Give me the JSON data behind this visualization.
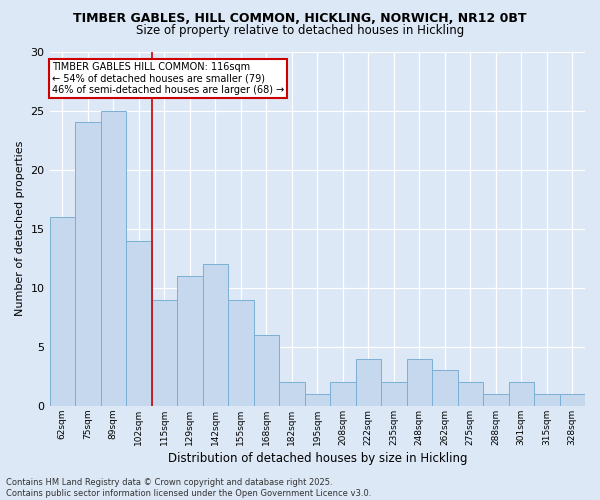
{
  "title_line1": "TIMBER GABLES, HILL COMMON, HICKLING, NORWICH, NR12 0BT",
  "title_line2": "Size of property relative to detached houses in Hickling",
  "xlabel": "Distribution of detached houses by size in Hickling",
  "ylabel": "Number of detached properties",
  "categories": [
    "62sqm",
    "75sqm",
    "89sqm",
    "102sqm",
    "115sqm",
    "129sqm",
    "142sqm",
    "155sqm",
    "168sqm",
    "182sqm",
    "195sqm",
    "208sqm",
    "222sqm",
    "235sqm",
    "248sqm",
    "262sqm",
    "275sqm",
    "288sqm",
    "301sqm",
    "315sqm",
    "328sqm"
  ],
  "values": [
    16,
    24,
    25,
    14,
    9,
    11,
    12,
    9,
    6,
    2,
    1,
    2,
    4,
    2,
    4,
    3,
    2,
    1,
    2,
    1,
    1
  ],
  "bar_color": "#c5d8ed",
  "bar_edge_color": "#7aafd4",
  "vline_color": "#cc0000",
  "annotation_text": "TIMBER GABLES HILL COMMON: 116sqm\n← 54% of detached houses are smaller (79)\n46% of semi-detached houses are larger (68) →",
  "annotation_box_color": "white",
  "annotation_box_edge": "#cc0000",
  "ylim": [
    0,
    30
  ],
  "yticks": [
    0,
    5,
    10,
    15,
    20,
    25,
    30
  ],
  "footer": "Contains HM Land Registry data © Crown copyright and database right 2025.\nContains public sector information licensed under the Open Government Licence v3.0.",
  "bg_color": "#dce8f5",
  "plot_bg_color": "#dce8f5",
  "grid_color": "white",
  "vline_index": 3.5
}
